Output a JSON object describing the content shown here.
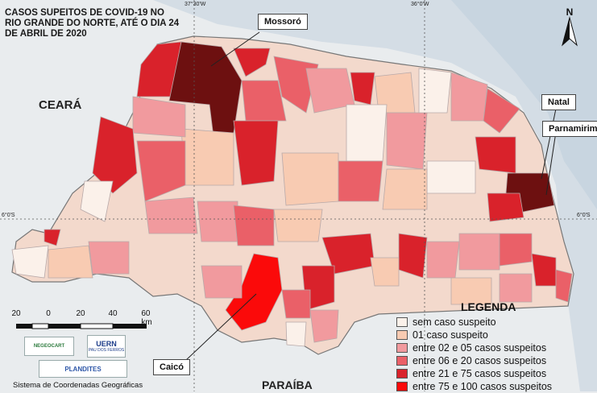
{
  "title": "CASOS SUPEITOS DE COVID-19 NO RIO GRANDE DO NORTE, ATÉ O DIA 24 DE ABRIL DE 2020",
  "callouts": {
    "mossoro": "Mossoró",
    "natal": "Natal",
    "parnamirim": "Parnamirim",
    "caico": "Caicó"
  },
  "states": {
    "ceara": "CEARÁ",
    "paraiba": "PARAÍBA"
  },
  "coordinates": {
    "top_left": "37°30'W",
    "top_right": "36°0'W",
    "left_lat": "6°0'S",
    "right_lat": "6°0'S"
  },
  "north_label": "N",
  "legend": {
    "title": "LEGENDA",
    "items": [
      {
        "label": "sem caso suspeito",
        "color": "#fbf1ea"
      },
      {
        "label": "01 caso suspeito",
        "color": "#f8cbb2"
      },
      {
        "label": "entre 02 e 05 casos suspeitos",
        "color": "#f19a9e"
      },
      {
        "label": "entre 06 e 20 casos suspeitos",
        "color": "#ea6068"
      },
      {
        "label": "entre 21 e 75 casos suspeitos",
        "color": "#d9222b"
      },
      {
        "label": "entre 75 e 100 casos suspeitos",
        "color": "#fb0a0a"
      }
    ]
  },
  "scale": {
    "labels": [
      "20",
      "0",
      "20",
      "40",
      "60 km"
    ]
  },
  "logos": {
    "negeocart": "NEGEOCART",
    "uern": "UERN",
    "uern_sub": "PAU DOS FERROS",
    "plandites": "PLANDITES"
  },
  "footer": "Sistema de Coordenadas Geográficas",
  "colors": {
    "sea": "#d2dbe3",
    "land_outside": "#e9ecee",
    "border": "#999999",
    "dark": "#6d1010"
  }
}
